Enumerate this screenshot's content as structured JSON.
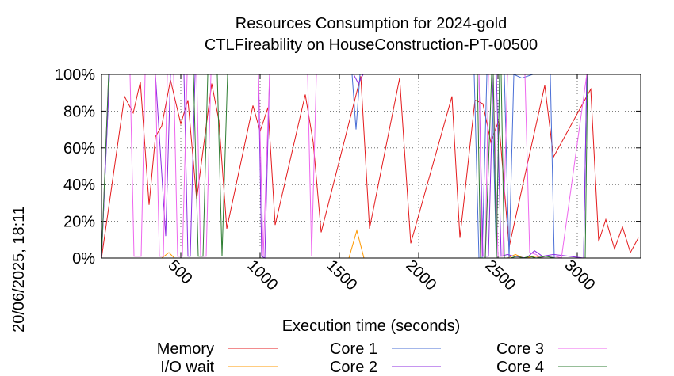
{
  "chart_data": {
    "type": "line",
    "title": [
      "Resources Consumption for 2024-gold",
      "CTLFireability on HouseConstruction-PT-00500"
    ],
    "xlabel": "Execution time (seconds)",
    "ylabel": "",
    "side_label": "20/06/2025, 18:11",
    "xlim": [
      0,
      3400
    ],
    "ylim": [
      0,
      100
    ],
    "xticks": [
      500,
      1000,
      1500,
      2000,
      2500,
      3000
    ],
    "yticks": [
      0,
      20,
      40,
      60,
      80,
      100
    ],
    "ytick_labels": [
      "0%",
      "20%",
      "40%",
      "60%",
      "80%",
      "100%"
    ],
    "grid": true,
    "legend_position": "bottom",
    "series": [
      {
        "name": "Memory",
        "color": "#e41a1c",
        "points": [
          [
            0,
            0
          ],
          [
            145,
            88
          ],
          [
            200,
            79
          ],
          [
            245,
            96
          ],
          [
            300,
            29
          ],
          [
            340,
            66
          ],
          [
            380,
            72
          ],
          [
            435,
            97
          ],
          [
            500,
            73
          ],
          [
            545,
            86
          ],
          [
            600,
            32
          ],
          [
            695,
            95
          ],
          [
            740,
            75
          ],
          [
            790,
            16
          ],
          [
            955,
            83
          ],
          [
            1000,
            69
          ],
          [
            1050,
            82
          ],
          [
            1095,
            18
          ],
          [
            1285,
            89
          ],
          [
            1335,
            63
          ],
          [
            1385,
            14
          ],
          [
            1635,
            99
          ],
          [
            1690,
            16
          ],
          [
            1880,
            98
          ],
          [
            1950,
            8
          ],
          [
            2210,
            88
          ],
          [
            2260,
            11
          ],
          [
            2355,
            86
          ],
          [
            2405,
            84
          ],
          [
            2455,
            63
          ],
          [
            2505,
            75
          ],
          [
            2570,
            6
          ],
          [
            2795,
            94
          ],
          [
            2850,
            55
          ],
          [
            3085,
            92
          ],
          [
            3135,
            9
          ],
          [
            3180,
            21
          ],
          [
            3235,
            5
          ],
          [
            3285,
            17
          ],
          [
            3335,
            3
          ],
          [
            3385,
            11
          ]
        ]
      },
      {
        "name": "I/O wait",
        "color": "#ff9900",
        "points": [
          [
            0,
            0
          ],
          [
            380,
            0
          ],
          [
            425,
            3
          ],
          [
            460,
            0
          ],
          [
            1560,
            0
          ],
          [
            1610,
            15
          ],
          [
            1655,
            0
          ],
          [
            2560,
            0
          ],
          [
            2610,
            2
          ],
          [
            2660,
            0
          ],
          [
            2740,
            1
          ],
          [
            2780,
            0
          ],
          [
            3400,
            0
          ]
        ]
      },
      {
        "name": "Core 1",
        "color": "#4a6fd6",
        "points": [
          [
            0,
            0
          ],
          [
            50,
            100
          ],
          [
            1580,
            100
          ],
          [
            1605,
            70
          ],
          [
            1630,
            100
          ],
          [
            1650,
            100
          ],
          [
            2350,
            100
          ],
          [
            2380,
            0
          ],
          [
            2400,
            0
          ],
          [
            2430,
            100
          ],
          [
            2460,
            100
          ],
          [
            2490,
            0
          ],
          [
            2510,
            100
          ],
          [
            2540,
            100
          ],
          [
            2570,
            0
          ],
          [
            2600,
            100
          ],
          [
            2650,
            98
          ],
          [
            2720,
            100
          ],
          [
            2830,
            100
          ],
          [
            2855,
            0
          ],
          [
            3040,
            0
          ],
          [
            3060,
            100
          ],
          [
            3400,
            100
          ]
        ]
      },
      {
        "name": "Core 2",
        "color": "#8c2be2",
        "points": [
          [
            0,
            0
          ],
          [
            50,
            100
          ],
          [
            340,
            100
          ],
          [
            405,
            12
          ],
          [
            435,
            100
          ],
          [
            520,
            100
          ],
          [
            545,
            1
          ],
          [
            560,
            1
          ],
          [
            590,
            100
          ],
          [
            990,
            100
          ],
          [
            1010,
            1
          ],
          [
            1030,
            0
          ],
          [
            1060,
            100
          ],
          [
            1590,
            100
          ],
          [
            1620,
            95
          ],
          [
            1650,
            100
          ],
          [
            2380,
            100
          ],
          [
            2405,
            1
          ],
          [
            2440,
            1
          ],
          [
            2470,
            100
          ],
          [
            2490,
            100
          ],
          [
            2520,
            1
          ],
          [
            2560,
            2
          ],
          [
            2600,
            1
          ],
          [
            2680,
            0
          ],
          [
            2730,
            4
          ],
          [
            2780,
            1
          ],
          [
            2850,
            2
          ],
          [
            2950,
            1
          ],
          [
            3040,
            0
          ],
          [
            3060,
            100
          ],
          [
            3400,
            100
          ]
        ]
      },
      {
        "name": "Core 3",
        "color": "#ee66ee",
        "points": [
          [
            0,
            0
          ],
          [
            45,
            100
          ],
          [
            180,
            100
          ],
          [
            205,
            1
          ],
          [
            250,
            1
          ],
          [
            275,
            100
          ],
          [
            340,
            100
          ],
          [
            365,
            1
          ],
          [
            390,
            1
          ],
          [
            415,
            100
          ],
          [
            455,
            100
          ],
          [
            480,
            1
          ],
          [
            510,
            1
          ],
          [
            540,
            100
          ],
          [
            600,
            100
          ],
          [
            625,
            1
          ],
          [
            660,
            1
          ],
          [
            690,
            100
          ],
          [
            760,
            100
          ],
          [
            990,
            100
          ],
          [
            1020,
            1
          ],
          [
            1060,
            100
          ],
          [
            1300,
            100
          ],
          [
            1325,
            1
          ],
          [
            1355,
            100
          ],
          [
            1590,
            100
          ],
          [
            1620,
            100
          ],
          [
            1660,
            100
          ],
          [
            2380,
            100
          ],
          [
            2400,
            1
          ],
          [
            2420,
            1
          ],
          [
            2440,
            100
          ],
          [
            2470,
            100
          ],
          [
            2500,
            1
          ],
          [
            2530,
            1
          ],
          [
            2560,
            100
          ],
          [
            2670,
            100
          ],
          [
            2700,
            3
          ],
          [
            2740,
            2
          ],
          [
            2770,
            0
          ],
          [
            2800,
            1
          ],
          [
            2860,
            1
          ],
          [
            2900,
            0
          ],
          [
            3060,
            100
          ],
          [
            3400,
            100
          ]
        ]
      },
      {
        "name": "Core 4",
        "color": "#2e7d32",
        "points": [
          [
            0,
            0
          ],
          [
            45,
            100
          ],
          [
            580,
            100
          ],
          [
            610,
            1
          ],
          [
            640,
            1
          ],
          [
            670,
            100
          ],
          [
            730,
            100
          ],
          [
            760,
            1
          ],
          [
            795,
            100
          ],
          [
            2370,
            100
          ],
          [
            2390,
            0
          ],
          [
            2420,
            0
          ],
          [
            2460,
            100
          ],
          [
            2470,
            100
          ],
          [
            2490,
            0
          ],
          [
            2510,
            100
          ],
          [
            2520,
            100
          ],
          [
            2540,
            0
          ],
          [
            2580,
            0
          ],
          [
            2620,
            1
          ],
          [
            2660,
            0
          ],
          [
            2700,
            1
          ],
          [
            2740,
            0
          ],
          [
            2800,
            1
          ],
          [
            2860,
            0
          ],
          [
            3050,
            0
          ],
          [
            3065,
            100
          ],
          [
            3400,
            100
          ]
        ]
      }
    ]
  }
}
